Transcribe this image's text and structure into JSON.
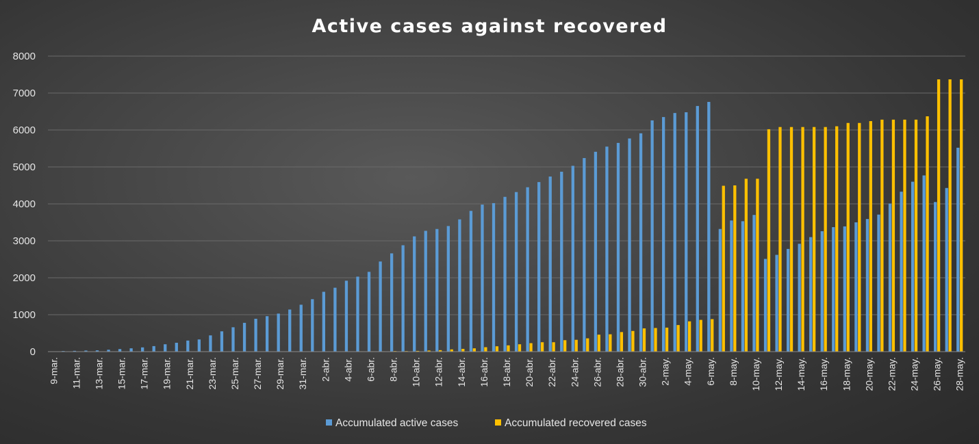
{
  "chart_data": {
    "type": "bar",
    "title": "Active cases against recovered",
    "xlabel": "",
    "ylabel": "",
    "ylim": [
      0,
      8000
    ],
    "yticks": [
      "0",
      "1000",
      "2000",
      "3000",
      "4000",
      "5000",
      "6000",
      "7000",
      "8000"
    ],
    "grid": true,
    "legend_position": "bottom",
    "categories": [
      "9-mar.",
      "10-mar.",
      "11-mar.",
      "12-mar.",
      "13-mar.",
      "14-mar.",
      "15-mar.",
      "16-mar.",
      "17-mar.",
      "18-mar.",
      "19-mar.",
      "20-mar.",
      "21-mar.",
      "22-mar.",
      "23-mar.",
      "24-mar.",
      "25-mar.",
      "26-mar.",
      "27-mar.",
      "28-mar.",
      "29-mar.",
      "30-mar.",
      "31-mar.",
      "1-abr.",
      "2-abr.",
      "3-abr.",
      "4-abr.",
      "5-abr.",
      "6-abr.",
      "7-abr.",
      "8-abr.",
      "9-abr.",
      "10-abr.",
      "11-abr.",
      "12-abr.",
      "13-abr.",
      "14-abr.",
      "15-abr.",
      "16-abr.",
      "17-abr.",
      "18-abr.",
      "19-abr.",
      "20-abr.",
      "21-abr.",
      "22-abr.",
      "23-abr.",
      "24-abr.",
      "25-abr.",
      "26-abr.",
      "27-abr.",
      "28-abr.",
      "29-abr.",
      "30-abr.",
      "1-may.",
      "2-may.",
      "3-may.",
      "4-may.",
      "5-may.",
      "6-may.",
      "7-may.",
      "8-may.",
      "9-may.",
      "10-may.",
      "11-may.",
      "12-may.",
      "13-may.",
      "14-may.",
      "15-may.",
      "16-may.",
      "17-may.",
      "18-may.",
      "19-may.",
      "20-may.",
      "21-may.",
      "22-may.",
      "23-may.",
      "24-may.",
      "25-may.",
      "26-may.",
      "27-may.",
      "28-may."
    ],
    "series": [
      {
        "name": "Accumulated active cases",
        "color": "#5b9bd5",
        "values": [
          9,
          17,
          22,
          30,
          35,
          52,
          70,
          90,
          115,
          150,
          200,
          240,
          300,
          330,
          440,
          550,
          660,
          780,
          890,
          960,
          1030,
          1140,
          1270,
          1420,
          1620,
          1730,
          1920,
          2030,
          2160,
          2440,
          2660,
          2880,
          3120,
          3270,
          3320,
          3400,
          3580,
          3810,
          3980,
          4020,
          4190,
          4320,
          4450,
          4590,
          4740,
          4870,
          5030,
          5240,
          5410,
          5550,
          5650,
          5770,
          5910,
          6260,
          6350,
          6460,
          6480,
          6650,
          6760,
          3320,
          3550,
          3530,
          3700,
          2510,
          2620,
          2780,
          2920,
          3100,
          3260,
          3370,
          3390,
          3500,
          3590,
          3710,
          4010,
          4330,
          4600,
          4770,
          4050,
          4430,
          5520
        ]
      },
      {
        "name": "Accumulated recovered cases",
        "color": "#ffc000",
        "values": [
          0,
          0,
          0,
          0,
          0,
          0,
          0,
          0,
          0,
          0,
          0,
          0,
          0,
          0,
          0,
          0,
          5,
          5,
          5,
          5,
          5,
          5,
          5,
          5,
          5,
          5,
          5,
          10,
          10,
          10,
          15,
          15,
          20,
          30,
          40,
          60,
          75,
          90,
          120,
          145,
          170,
          200,
          230,
          255,
          255,
          310,
          320,
          360,
          460,
          470,
          530,
          560,
          630,
          640,
          650,
          720,
          820,
          860,
          880,
          4490,
          4500,
          4680,
          4680,
          6020,
          6080,
          6080,
          6080,
          6080,
          6080,
          6100,
          6190,
          6190,
          6240,
          6280,
          6280,
          6280,
          6280,
          6370,
          7370,
          7370,
          7370
        ]
      }
    ]
  }
}
